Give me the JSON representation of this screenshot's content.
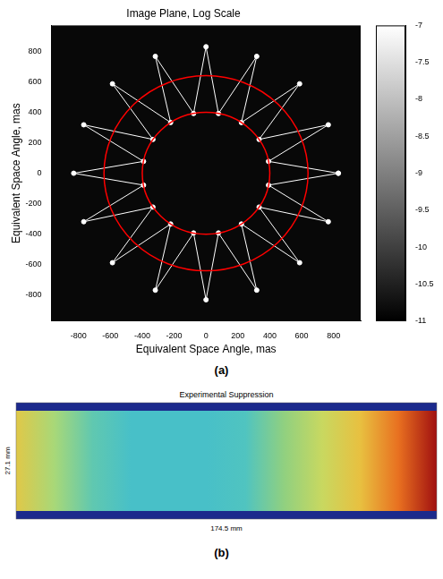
{
  "chart_data": [
    {
      "panel": "(a)",
      "type": "line",
      "title": "Image Plane, Log Scale",
      "xlabel": "Equivalent Space Angle, mas",
      "ylabel": "Equivalent Space Angle, mas",
      "x": [
        830,
        392,
        767,
        333,
        587,
        222,
        318,
        78,
        0,
        -78,
        -318,
        -222,
        -587,
        -333,
        -767,
        -392,
        -830,
        -392,
        -767,
        -333,
        -587,
        -222,
        -318,
        -78,
        0,
        78,
        318,
        222,
        587,
        333,
        767,
        392,
        830
      ],
      "values": [
        0,
        78,
        318,
        222,
        587,
        333,
        767,
        392,
        830,
        392,
        767,
        333,
        587,
        222,
        318,
        78,
        0,
        -78,
        -318,
        -222,
        -587,
        -333,
        -767,
        -392,
        -830,
        -392,
        -767,
        -333,
        -587,
        -222,
        -318,
        -78,
        0
      ],
      "color": "#ffffff",
      "xlim": [
        -970,
        970
      ],
      "ylim": [
        -970,
        970
      ],
      "xticks": [
        -800,
        -600,
        -400,
        -200,
        0,
        200,
        400,
        600,
        800
      ],
      "yticks": [
        -800,
        -600,
        -400,
        -200,
        0,
        200,
        400,
        600,
        800
      ],
      "grid": false,
      "circles": [
        {
          "radius": 400,
          "color": "#ff0000"
        },
        {
          "radius": 640,
          "color": "#ff0000"
        }
      ],
      "colorbar": {
        "range": [
          -11,
          -7
        ],
        "ticks": [
          -7,
          -7.5,
          -8,
          -8.5,
          -9,
          -9.5,
          -10,
          -10.5,
          -11
        ]
      }
    },
    {
      "panel": "(b)",
      "type": "heatmap",
      "title": "Experimental Suppression",
      "xlabel": "174.5 mm",
      "ylabel": "27.1 mm",
      "color": "#1c2a8c",
      "colors": [
        "#e0c848",
        "#a8d878",
        "#60c8b0",
        "#48c0c8",
        "#48c0c8",
        "#48c0c8",
        "#50c4c0",
        "#90d080",
        "#c8d860",
        "#e8c040",
        "#e87020",
        "#a01010"
      ]
    }
  ]
}
